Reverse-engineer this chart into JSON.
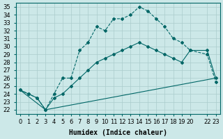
{
  "xlabel": "Humidex (Indice chaleur)",
  "bg_color": "#cce8e8",
  "line_color": "#006666",
  "grid_color": "#aacccc",
  "xlim": [
    -0.5,
    23.5
  ],
  "ylim": [
    21.5,
    35.5
  ],
  "xticks": [
    0,
    1,
    2,
    3,
    4,
    5,
    6,
    7,
    8,
    9,
    10,
    11,
    12,
    13,
    14,
    15,
    16,
    17,
    18,
    19,
    20,
    22,
    23
  ],
  "xtick_labels": [
    "0",
    "1",
    "2",
    "3",
    "4",
    "5",
    "6",
    "7",
    "8",
    "9",
    "10",
    "11",
    "12",
    "13",
    "14",
    "15",
    "16",
    "17",
    "18",
    "19",
    "20",
    "22",
    "23"
  ],
  "yticks": [
    22,
    23,
    24,
    25,
    26,
    27,
    28,
    29,
    30,
    31,
    32,
    33,
    34,
    35
  ],
  "line1_x": [
    0,
    1,
    2,
    3,
    4,
    5,
    6,
    7,
    8,
    9,
    10,
    11,
    12,
    13,
    14,
    15,
    16,
    17,
    18,
    19,
    20,
    22,
    23
  ],
  "line1_y": [
    24.5,
    24.0,
    23.5,
    22.0,
    24.0,
    26.0,
    26.0,
    29.5,
    30.5,
    32.5,
    32.0,
    33.5,
    33.5,
    34.0,
    35.0,
    34.5,
    33.5,
    32.5,
    31.0,
    30.5,
    29.5,
    29.0,
    25.5
  ],
  "line2_x": [
    0,
    1,
    2,
    3,
    4,
    5,
    6,
    7,
    8,
    9,
    10,
    11,
    12,
    13,
    14,
    15,
    16,
    17,
    18,
    19,
    20,
    22,
    23
  ],
  "line2_y": [
    24.5,
    24.0,
    23.5,
    22.0,
    23.5,
    24.0,
    25.0,
    26.0,
    27.0,
    28.0,
    28.5,
    29.0,
    29.5,
    30.0,
    30.5,
    30.0,
    29.5,
    29.0,
    28.5,
    28.0,
    29.5,
    29.5,
    26.0
  ],
  "line3_x": [
    0,
    3,
    23
  ],
  "line3_y": [
    24.5,
    22.0,
    26.0
  ],
  "fontsize_label": 7,
  "fontsize_tick": 6,
  "marker": "D",
  "markersize": 2.0,
  "linewidth": 0.8
}
